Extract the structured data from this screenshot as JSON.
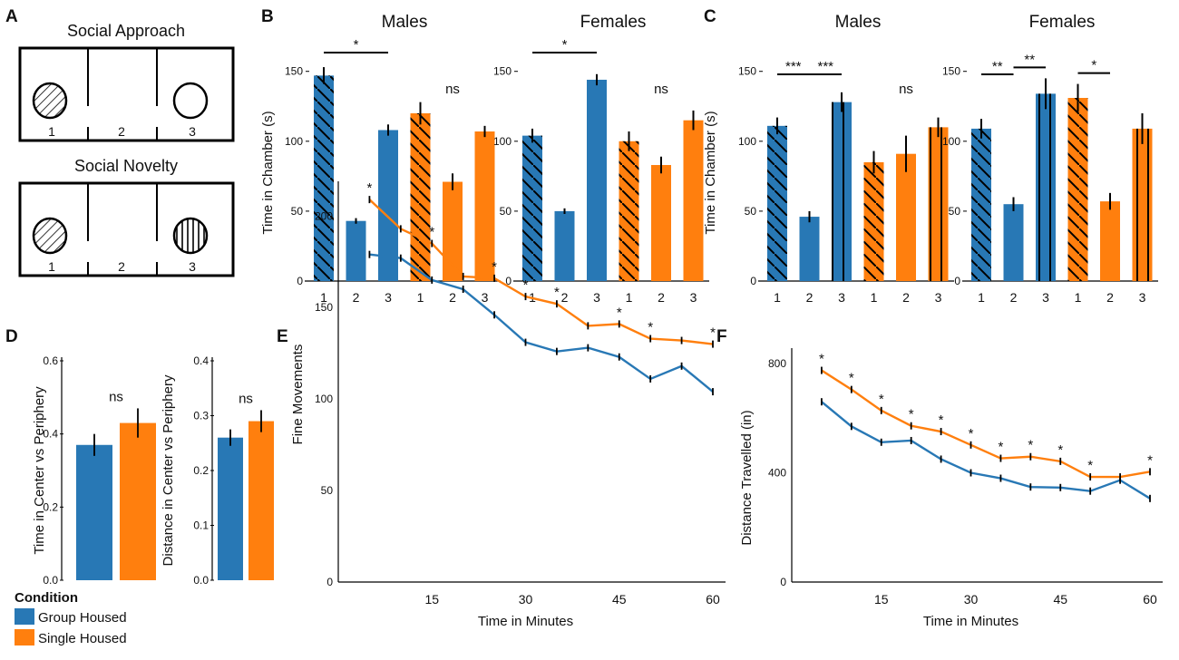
{
  "colors": {
    "group": "#2878b5",
    "single": "#ff7f0e",
    "axis": "#000000"
  },
  "panel_labels": [
    "A",
    "B",
    "C",
    "D",
    "E",
    "F"
  ],
  "panel_a": {
    "diagrams": [
      {
        "title": "Social Approach",
        "chambers": [
          "1",
          "2",
          "3"
        ],
        "left_cup": "diagonal-stripes",
        "right_cup": "empty"
      },
      {
        "title": "Social Novelty",
        "chambers": [
          "1",
          "2",
          "3"
        ],
        "left_cup": "diagonal-stripes",
        "right_cup": "vertical-stripes"
      }
    ]
  },
  "legend": {
    "title": "Condition",
    "items": [
      {
        "label": "Group Housed",
        "color": "#2878b5"
      },
      {
        "label": "Single Housed",
        "color": "#ff7f0e"
      }
    ]
  },
  "chart_data": [
    {
      "id": "B",
      "type": "bar",
      "ylabel": "Time in Chamber (s)",
      "ylim": [
        0,
        155
      ],
      "yticks": [
        "0",
        "50",
        "100",
        "150"
      ],
      "subplots": [
        {
          "title": "Males",
          "categories": [
            "1",
            "2",
            "3",
            "1",
            "2",
            "3"
          ],
          "values": [
            147,
            43,
            108,
            120,
            71,
            107
          ],
          "errors": [
            6,
            2,
            4,
            8,
            6,
            4
          ],
          "groups": [
            "group",
            "group",
            "group",
            "single",
            "single",
            "single"
          ],
          "hatch": [
            "diag",
            "none",
            "none",
            "diag",
            "none",
            "none"
          ],
          "sig": [
            {
              "from": 0,
              "to": 2,
              "label": "*"
            }
          ],
          "ns_label": "ns"
        },
        {
          "title": "Females",
          "categories": [
            "1",
            "2",
            "3",
            "1",
            "2",
            "3"
          ],
          "values": [
            104,
            50,
            144,
            100,
            83,
            115
          ],
          "errors": [
            5,
            2,
            4,
            7,
            6,
            7
          ],
          "groups": [
            "group",
            "group",
            "group",
            "single",
            "single",
            "single"
          ],
          "hatch": [
            "diag",
            "none",
            "none",
            "diag",
            "none",
            "none"
          ],
          "sig": [
            {
              "from": 0,
              "to": 2,
              "label": "*"
            }
          ],
          "ns_label": "ns"
        }
      ]
    },
    {
      "id": "C",
      "type": "bar",
      "ylabel": "Time in Chamber (s)",
      "ylim": [
        0,
        155
      ],
      "yticks": [
        "0",
        "50",
        "100",
        "150"
      ],
      "subplots": [
        {
          "title": "Males",
          "categories": [
            "1",
            "2",
            "3",
            "1",
            "2",
            "3"
          ],
          "values": [
            111,
            46,
            128,
            85,
            91,
            110
          ],
          "errors": [
            6,
            4,
            7,
            8,
            13,
            7
          ],
          "groups": [
            "group",
            "group",
            "group",
            "single",
            "single",
            "single"
          ],
          "hatch": [
            "diag",
            "none",
            "vert",
            "diag",
            "none",
            "vert"
          ],
          "sig": [
            {
              "from": 0,
              "to": 1,
              "label": "***"
            },
            {
              "from": 1,
              "to": 2,
              "label": "***"
            }
          ],
          "ns_label": "ns"
        },
        {
          "title": "Females",
          "categories": [
            "1",
            "2",
            "3",
            "1",
            "2",
            "3"
          ],
          "values": [
            109,
            55,
            134,
            131,
            57,
            109
          ],
          "errors": [
            7,
            5,
            11,
            10,
            6,
            11
          ],
          "groups": [
            "group",
            "group",
            "group",
            "single",
            "single",
            "single"
          ],
          "hatch": [
            "diag",
            "none",
            "vert",
            "diag",
            "none",
            "vert"
          ],
          "sig": [
            {
              "from": 0,
              "to": 1,
              "label": "**"
            },
            {
              "from": 1,
              "to": 2,
              "label": "**"
            },
            {
              "from": 3,
              "to": 4,
              "label": "*"
            }
          ],
          "ns_label": ""
        }
      ]
    },
    {
      "id": "D1",
      "type": "bar",
      "ylabel": "Time in Center vs Periphery",
      "ylim": [
        0,
        0.6
      ],
      "yticks": [
        "0.0",
        "0.2",
        "0.4",
        "0.6"
      ],
      "categories": [
        "Group Housed",
        "Single Housed"
      ],
      "values": [
        0.37,
        0.43
      ],
      "errors": [
        0.03,
        0.04
      ],
      "groups": [
        "group",
        "single"
      ],
      "sig_label": "ns"
    },
    {
      "id": "D2",
      "type": "bar",
      "ylabel": "Distance in Center vs Periphery",
      "ylim": [
        0,
        0.4
      ],
      "yticks": [
        "0.0",
        "0.1",
        "0.2",
        "0.3",
        "0.4"
      ],
      "categories": [
        "Group Housed",
        "Single Housed"
      ],
      "values": [
        0.26,
        0.29
      ],
      "errors": [
        0.015,
        0.02
      ],
      "groups": [
        "group",
        "single"
      ],
      "sig_label": "ns"
    },
    {
      "id": "E",
      "type": "line",
      "xlabel": "Time in Minutes",
      "ylabel": "Fine Movements",
      "xlim": [
        0,
        60
      ],
      "ylim": [
        0,
        215
      ],
      "xticks": [
        "15",
        "30",
        "45",
        "60"
      ],
      "yticks": [
        "0",
        "50",
        "100",
        "150",
        "200"
      ],
      "x": [
        5,
        10,
        15,
        20,
        25,
        30,
        35,
        40,
        45,
        50,
        55,
        60
      ],
      "series": [
        {
          "name": "Group Housed",
          "group": "group",
          "values": [
            179,
            177,
            165,
            160,
            146,
            131,
            126,
            128,
            123,
            111,
            118,
            104
          ]
        },
        {
          "name": "Single Housed",
          "group": "single",
          "values": [
            209,
            193,
            185,
            167,
            166,
            156,
            152,
            140,
            141,
            133,
            132,
            130
          ]
        }
      ],
      "sig_x": [
        5,
        15,
        25,
        30,
        35,
        45,
        50,
        60
      ],
      "sig_label": "*"
    },
    {
      "id": "F",
      "type": "line",
      "xlabel": "Time in Minutes",
      "ylabel": "Distance Travelled (in)",
      "xlim": [
        0,
        60
      ],
      "ylim": [
        0,
        830
      ],
      "xticks": [
        "15",
        "30",
        "45",
        "60"
      ],
      "yticks": [
        "0",
        "400",
        "800"
      ],
      "x": [
        5,
        10,
        15,
        20,
        25,
        30,
        35,
        40,
        45,
        50,
        55,
        60
      ],
      "series": [
        {
          "name": "Group Housed",
          "group": "group",
          "values": [
            660,
            570,
            512,
            518,
            450,
            400,
            380,
            348,
            346,
            333,
            373,
            306
          ]
        },
        {
          "name": "Single Housed",
          "group": "single",
          "values": [
            775,
            705,
            628,
            572,
            551,
            502,
            453,
            459,
            442,
            385,
            385,
            404
          ]
        }
      ],
      "sig_x": [
        5,
        10,
        15,
        20,
        25,
        30,
        35,
        40,
        45,
        50,
        60
      ],
      "sig_label": "*"
    }
  ]
}
